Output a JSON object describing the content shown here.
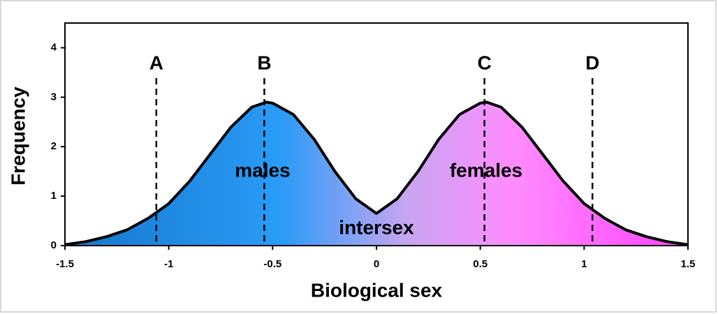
{
  "chart_data": {
    "type": "area",
    "x_label": "Biological sex",
    "y_label": "Frequency",
    "x": [
      -1.5,
      -1.4,
      -1.3,
      -1.2,
      -1.1,
      -1.0,
      -0.9,
      -0.8,
      -0.7,
      -0.6,
      -0.53,
      -0.5,
      -0.4,
      -0.3,
      -0.2,
      -0.1,
      0,
      0.1,
      0.2,
      0.3,
      0.4,
      0.5,
      0.53,
      0.6,
      0.7,
      0.8,
      0.9,
      1.0,
      1.1,
      1.2,
      1.3,
      1.4,
      1.5
    ],
    "values": [
      0.02,
      0.08,
      0.18,
      0.32,
      0.55,
      0.85,
      1.3,
      1.85,
      2.4,
      2.8,
      2.9,
      2.88,
      2.65,
      2.15,
      1.5,
      0.95,
      0.65,
      0.95,
      1.5,
      2.15,
      2.65,
      2.88,
      2.9,
      2.8,
      2.4,
      1.85,
      1.3,
      0.85,
      0.55,
      0.32,
      0.18,
      0.08,
      0.02
    ],
    "line_color": "#000000",
    "gradient_colors": [
      "#1577cc",
      "#2a9cf7",
      "#c8a6f2",
      "#ff8cff",
      "#ff40ff"
    ],
    "xlim": [
      -1.5,
      1.5
    ],
    "xticks": [
      -1.5,
      -1,
      -0.5,
      0,
      0.5,
      1,
      1.5
    ],
    "ylim": [
      0,
      4.5
    ],
    "yticks": [
      0,
      1,
      2,
      3,
      4
    ],
    "reference_lines": [
      {
        "x": -1.06,
        "label": "A"
      },
      {
        "x": -0.54,
        "label": "B"
      },
      {
        "x": 0.52,
        "label": "C"
      },
      {
        "x": 1.04,
        "label": "D"
      }
    ],
    "annotations": [
      "males",
      "females",
      "intersex"
    ]
  }
}
